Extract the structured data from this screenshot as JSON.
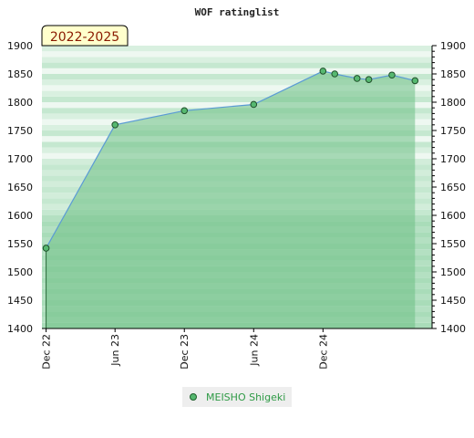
{
  "chart_data": {
    "type": "area",
    "title": "WOF ratinglist",
    "badge": "2022-2025",
    "xlabel": "",
    "ylabel": "",
    "x_ticks": [
      {
        "label": "Dec 22",
        "x": "2022-12-01"
      },
      {
        "label": "Jun 23",
        "x": "2023-06-01"
      },
      {
        "label": "Dec 23",
        "x": "2023-12-01"
      },
      {
        "label": "Jun 24",
        "x": "2024-06-01"
      },
      {
        "label": "Dec 24",
        "x": "2024-12-01"
      }
    ],
    "xlim": [
      "2022-11-20",
      "2025-09-15"
    ],
    "ylim": [
      1400,
      1900
    ],
    "y_ticks": [
      1400,
      1450,
      1500,
      1550,
      1600,
      1650,
      1700,
      1750,
      1800,
      1850,
      1900
    ],
    "series": [
      {
        "name": "MEISHO Shigeki",
        "points": [
          {
            "x": "2022-12-01",
            "y": 1542
          },
          {
            "x": "2023-06-01",
            "y": 1760
          },
          {
            "x": "2023-12-01",
            "y": 1785
          },
          {
            "x": "2024-06-01",
            "y": 1796
          },
          {
            "x": "2024-12-01",
            "y": 1855
          },
          {
            "x": "2025-01-01",
            "y": 1850
          },
          {
            "x": "2025-03-01",
            "y": 1842
          },
          {
            "x": "2025-04-01",
            "y": 1840
          },
          {
            "x": "2025-06-01",
            "y": 1848
          },
          {
            "x": "2025-08-01",
            "y": 1838
          }
        ]
      }
    ],
    "grid": true,
    "legend_position": "bottom",
    "colors": {
      "line": "#5b9bd5",
      "fill": "#6dbf85",
      "marker": "#56b870",
      "badge_bg": "#ffffcc",
      "legend_text": "#2e9a45",
      "band_light": "#eef8f1",
      "band_mid": "#c5e8d0",
      "band_dark": "#a9dcb9"
    }
  }
}
